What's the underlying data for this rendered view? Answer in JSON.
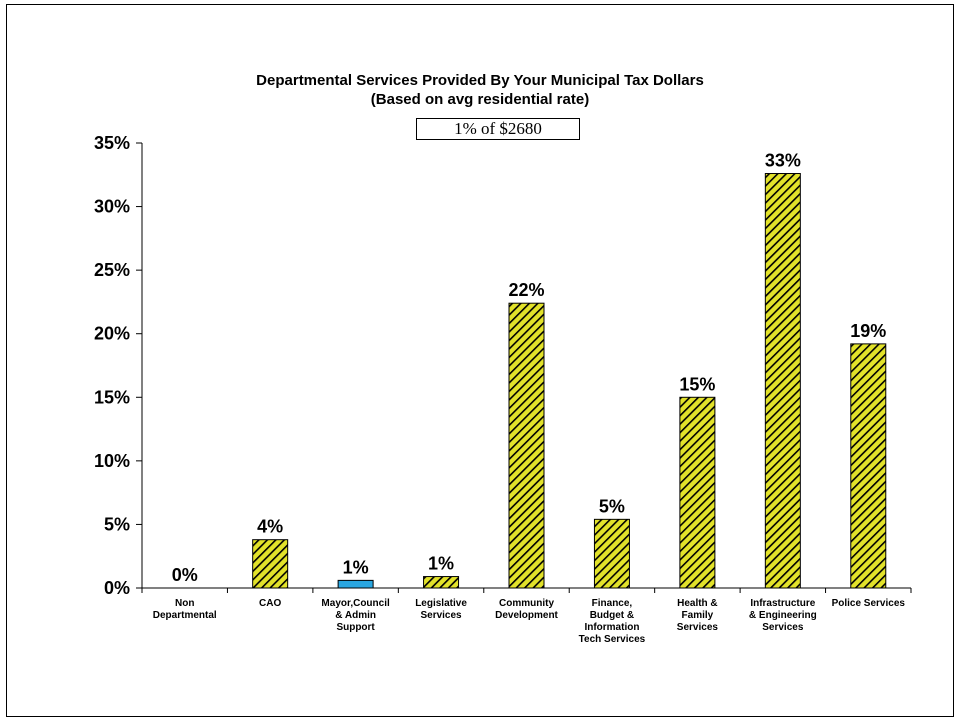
{
  "chart_data": {
    "type": "bar",
    "title": "Departmental Services Provided By Your Municipal Tax Dollars",
    "subtitle": "(Based on avg residential rate)",
    "annotation": "1% of $2680",
    "categories": [
      [
        "Non",
        "Departmental"
      ],
      [
        "CAO"
      ],
      [
        "Mayor,Council",
        "& Admin",
        "Support"
      ],
      [
        "Legislative",
        "Services"
      ],
      [
        "Community",
        "Development"
      ],
      [
        "Finance,",
        "Budget &",
        "Information",
        "Tech Services"
      ],
      [
        "Health &",
        "Family",
        "Services"
      ],
      [
        "Infrastructure",
        "& Engineering",
        "Services"
      ],
      [
        "Police Services"
      ]
    ],
    "values": [
      0.0,
      3.8,
      0.6,
      0.9,
      22.4,
      5.4,
      15.0,
      32.6,
      19.2
    ],
    "data_labels": [
      "0%",
      "4%",
      "1%",
      "1%",
      "22%",
      "5%",
      "15%",
      "33%",
      "19%"
    ],
    "ylim": [
      0,
      35
    ],
    "yticks": [
      0,
      5,
      10,
      15,
      20,
      25,
      30,
      35
    ],
    "ytick_labels": [
      "0%",
      "5%",
      "10%",
      "15%",
      "20%",
      "25%",
      "30%",
      "35%"
    ],
    "xlabel": "",
    "ylabel": "",
    "grid": false,
    "legend": "none",
    "colors": {
      "bar_fill": "#e2e22a",
      "bar_hatch": "#000000",
      "highlight_fill": "#2aa6e0",
      "highlight_index": 2
    }
  }
}
